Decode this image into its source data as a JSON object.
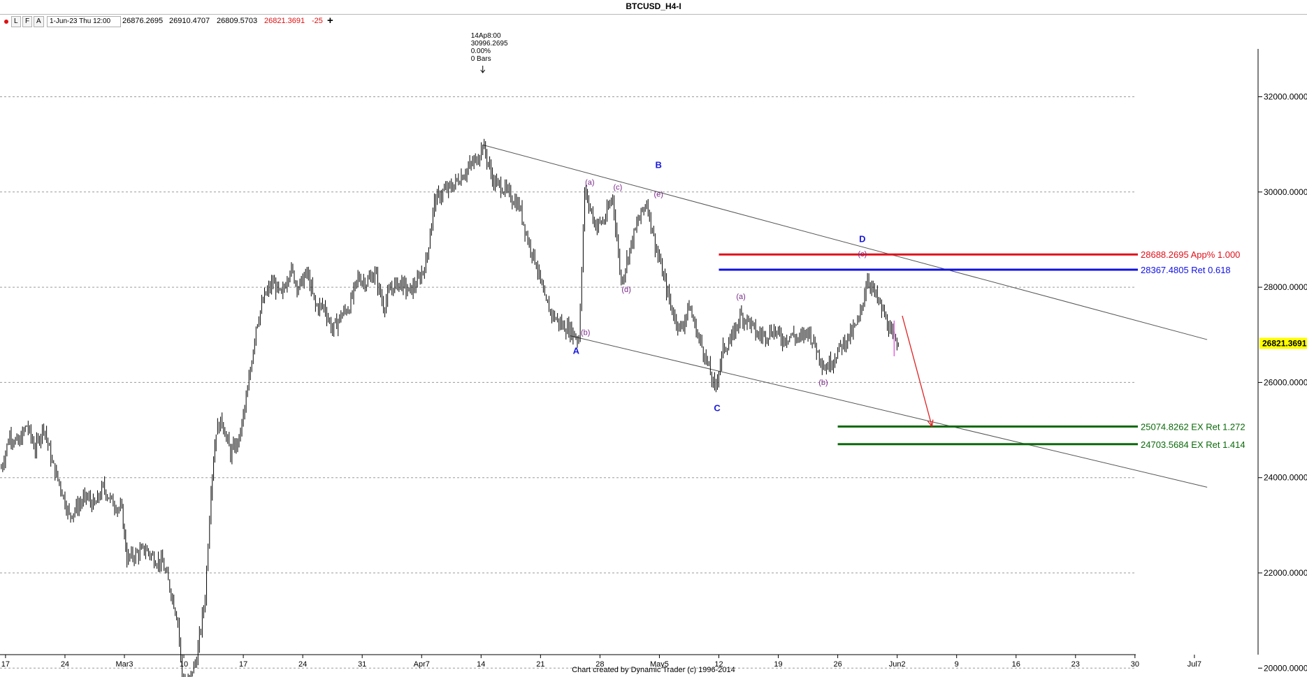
{
  "window": {
    "title": "BTCUSD_H4-I"
  },
  "toolbar": {
    "dot_icon": "red-dot-icon",
    "buttons": [
      "L",
      "F",
      "A"
    ],
    "date": "1-Jun-23 Thu 12:00",
    "open": "26876.2695",
    "high": "26910.4707",
    "low": "26809.5703",
    "close": "26821.3691",
    "change": "-25",
    "plus_icon": "plus-icon"
  },
  "colors": {
    "up_fill": "#ffffff",
    "bar": "#000000",
    "grid": "#9a9a9a",
    "red_level": "#e0101a",
    "blue_level": "#1010e8",
    "green_level": "#0a6a0a",
    "wave_major": "#1a1adc",
    "wave_minor": "#7a2a8a",
    "price_box": "#ffff00",
    "arrow": "#e02020"
  },
  "chart_data": {
    "type": "line",
    "title": "BTCUSD_H4-I",
    "footer": "Chart created by Dynamic Trader  (c) 1996-2014",
    "ylim": [
      18500,
      32400
    ],
    "y_ticks": [
      "32000.0000",
      "30000.0000",
      "28000.0000",
      "26000.0000",
      "24000.0000",
      "22000.0000",
      "20000.0000"
    ],
    "y_tick_values": [
      32000,
      30000,
      28000,
      26000,
      24000,
      22000,
      20000
    ],
    "x_ticks": [
      "17",
      "24",
      "Mar3",
      "10",
      "17",
      "24",
      "31",
      "Apr7",
      "14",
      "21",
      "28",
      "May5",
      "12",
      "19",
      "26",
      "Jun2",
      "9",
      "16",
      "23",
      "30",
      "Jul7"
    ],
    "x_tick_days": [
      -14,
      -7,
      0,
      7,
      14,
      21,
      28,
      35,
      42,
      49,
      56,
      63,
      70,
      77,
      84,
      91,
      98,
      105,
      112,
      119,
      126
    ],
    "x_axis_start": "Feb-17",
    "current_price": "26821.3691",
    "current_price_value": 26821.3691,
    "price_path": [
      [
        -14.5,
        24200
      ],
      [
        -13.5,
        24900
      ],
      [
        -12.5,
        24700
      ],
      [
        -11.5,
        25100
      ],
      [
        -10.5,
        24600
      ],
      [
        -9.5,
        25100
      ],
      [
        -8.5,
        24300
      ],
      [
        -7.5,
        23800
      ],
      [
        -6.5,
        23200
      ],
      [
        -5.5,
        23400
      ],
      [
        -4.5,
        23600
      ],
      [
        -3.5,
        23400
      ],
      [
        -2.5,
        23800
      ],
      [
        -1.5,
        23500
      ],
      [
        -0.3,
        23300
      ],
      [
        0.3,
        22300
      ],
      [
        1.5,
        22400
      ],
      [
        2.5,
        22500
      ],
      [
        3.5,
        22300
      ],
      [
        4.5,
        22200
      ],
      [
        5.5,
        21600
      ],
      [
        6.3,
        21000
      ],
      [
        6.8,
        19800
      ],
      [
        7.5,
        19700
      ],
      [
        8.5,
        20200
      ],
      [
        9.5,
        21500
      ],
      [
        10.2,
        23800
      ],
      [
        10.8,
        25000
      ],
      [
        11.5,
        25200
      ],
      [
        12.5,
        24500
      ],
      [
        13.5,
        24800
      ],
      [
        14.5,
        25800
      ],
      [
        15.5,
        27200
      ],
      [
        16.5,
        27800
      ],
      [
        17.5,
        28100
      ],
      [
        18.5,
        27800
      ],
      [
        19.5,
        28400
      ],
      [
        20.5,
        28000
      ],
      [
        21.5,
        28300
      ],
      [
        22.5,
        27600
      ],
      [
        23.5,
        27600
      ],
      [
        24.5,
        27100
      ],
      [
        25.5,
        27400
      ],
      [
        26.5,
        27600
      ],
      [
        27.5,
        28200
      ],
      [
        28.5,
        28100
      ],
      [
        29.5,
        28300
      ],
      [
        30.5,
        27600
      ],
      [
        31.5,
        28000
      ],
      [
        32.5,
        28100
      ],
      [
        33.5,
        27900
      ],
      [
        34.5,
        28100
      ],
      [
        35.5,
        28500
      ],
      [
        36.5,
        29800
      ],
      [
        37.5,
        30000
      ],
      [
        38.5,
        30100
      ],
      [
        39.5,
        30300
      ],
      [
        40.5,
        30500
      ],
      [
        41.5,
        30700
      ],
      [
        42.2,
        30996
      ],
      [
        43.5,
        30200
      ],
      [
        44.5,
        30100
      ],
      [
        45.5,
        29900
      ],
      [
        46.5,
        29700
      ],
      [
        47.5,
        29000
      ],
      [
        48.5,
        28500
      ],
      [
        49.5,
        27700
      ],
      [
        50.5,
        27400
      ],
      [
        51.5,
        27200
      ],
      [
        52.5,
        27100
      ],
      [
        53.5,
        26900
      ],
      [
        54.2,
        30000
      ],
      [
        55.5,
        29300
      ],
      [
        56.5,
        29400
      ],
      [
        57.5,
        29900
      ],
      [
        58.5,
        28100
      ],
      [
        59.5,
        28800
      ],
      [
        60.5,
        29400
      ],
      [
        61.5,
        29800
      ],
      [
        62.5,
        28900
      ],
      [
        63.5,
        28200
      ],
      [
        64.5,
        27500
      ],
      [
        65.5,
        27100
      ],
      [
        66.5,
        27600
      ],
      [
        67.5,
        27000
      ],
      [
        68.5,
        26500
      ],
      [
        69.5,
        25850
      ],
      [
        70.5,
        26700
      ],
      [
        71.5,
        26900
      ],
      [
        72.5,
        27400
      ],
      [
        73.5,
        27300
      ],
      [
        74.5,
        27000
      ],
      [
        75.5,
        27000
      ],
      [
        76.5,
        27100
      ],
      [
        77.5,
        26900
      ],
      [
        78.5,
        27000
      ],
      [
        79.5,
        26900
      ],
      [
        80.5,
        27100
      ],
      [
        81.5,
        26700
      ],
      [
        82.5,
        26300
      ],
      [
        83.5,
        26500
      ],
      [
        84.5,
        26800
      ],
      [
        85.5,
        27000
      ],
      [
        86.5,
        27300
      ],
      [
        87.5,
        28200
      ],
      [
        88.5,
        27800
      ],
      [
        89.5,
        27400
      ],
      [
        90.5,
        26900
      ],
      [
        91.3,
        26821
      ]
    ],
    "channel_lines": [
      {
        "from": [
          42.2,
          30990
        ],
        "to": [
          127.5,
          26900
        ]
      },
      {
        "from": [
          52.5,
          26980
        ],
        "to": [
          127.5,
          23800
        ]
      }
    ],
    "levels": [
      {
        "value": 28688.2695,
        "label": "28688.2695 App% 1.000",
        "color": "#e0101a",
        "x_start": 70
      },
      {
        "value": 28367.4805,
        "label": "28367.4805 Ret 0.618",
        "color": "#1010e8",
        "x_start": 70
      },
      {
        "value": 25074.8262,
        "label": "25074.8262 EX Ret 1.272",
        "color": "#0a6a0a",
        "x_start": 84
      },
      {
        "value": 24703.5684,
        "label": "24703.5684 EX Ret 1.414",
        "color": "#0a6a0a",
        "x_start": 84
      }
    ],
    "wave_labels": [
      {
        "text": "A",
        "x": 53.2,
        "y": 26600,
        "major": true
      },
      {
        "text": "B",
        "x": 62.9,
        "y": 30500,
        "major": true
      },
      {
        "text": "C",
        "x": 69.8,
        "y": 25400,
        "major": true
      },
      {
        "text": "D",
        "x": 86.9,
        "y": 28950,
        "major": true
      },
      {
        "text": "(b)",
        "x": 54.3,
        "y": 27000,
        "major": false
      },
      {
        "text": "(a)",
        "x": 54.8,
        "y": 30150,
        "major": false
      },
      {
        "text": "(c)",
        "x": 58.1,
        "y": 30050,
        "major": false
      },
      {
        "text": "(d)",
        "x": 59.1,
        "y": 27900,
        "major": false
      },
      {
        "text": "(e)",
        "x": 62.9,
        "y": 29900,
        "major": false
      },
      {
        "text": "(a)",
        "x": 72.6,
        "y": 27750,
        "major": false
      },
      {
        "text": "(b)",
        "x": 82.3,
        "y": 25950,
        "major": false
      },
      {
        "text": "(c)",
        "x": 86.9,
        "y": 28650,
        "major": false
      }
    ],
    "annotation": {
      "lines": [
        "14Ap8:00",
        "30996.2695",
        "0.00%",
        "0 Bars"
      ],
      "x": 42.2
    },
    "projection_arrow": {
      "from": [
        91.6,
        27400
      ],
      "to": [
        95.1,
        25074
      ]
    }
  }
}
